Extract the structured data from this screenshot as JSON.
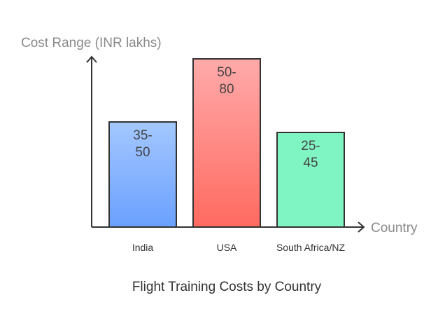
{
  "chart_data": {
    "type": "bar",
    "title": "Flight Training Costs by Country",
    "xlabel": "Country",
    "ylabel": "Cost Range (INR lakhs)",
    "categories": [
      "India",
      "USA",
      "South Africa/NZ"
    ],
    "ranges": [
      {
        "low": 35,
        "high": 50,
        "label_line1": "35-",
        "label_line2": "50",
        "color_top": "#a4c8ff",
        "color_bottom": "#6aa0ff"
      },
      {
        "low": 50,
        "high": 80,
        "label_line1": "50-",
        "label_line2": "80",
        "color_top": "#ffaaaa",
        "color_bottom": "#ff6a60"
      },
      {
        "low": 25,
        "high": 45,
        "label_line1": "25-",
        "label_line2": "45",
        "color_top": "#80f5c4",
        "color_bottom": "#80f5c4"
      }
    ],
    "values": [
      50,
      80,
      45
    ],
    "ylim": [
      0,
      100
    ],
    "grid": false,
    "legend": "none"
  }
}
